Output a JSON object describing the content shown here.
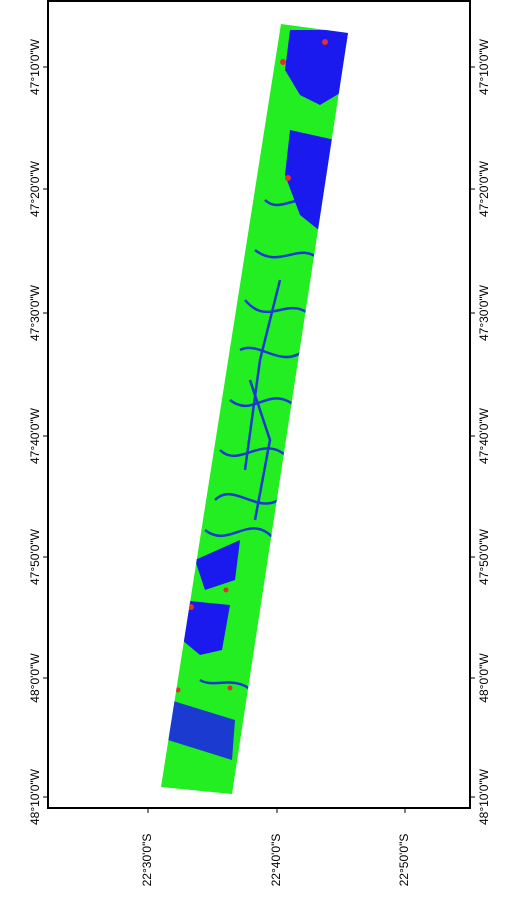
{
  "map": {
    "left_labels": [
      "47°10'0\"W",
      "47°20'0\"W",
      "47°30'0\"W",
      "47°40'0\"W",
      "47°50'0\"W",
      "48°0'0\"W",
      "48°10'0\"W"
    ],
    "right_labels": [
      "47°10'0\"W",
      "47°20'0\"W",
      "47°30'0\"W",
      "47°40'0\"W",
      "47°50'0\"W",
      "48°0'0\"W",
      "48°10'0\"W"
    ],
    "bottom_labels": [
      "22°30'0\"S",
      "22°40'0\"S",
      "22°50'0\"S"
    ]
  }
}
